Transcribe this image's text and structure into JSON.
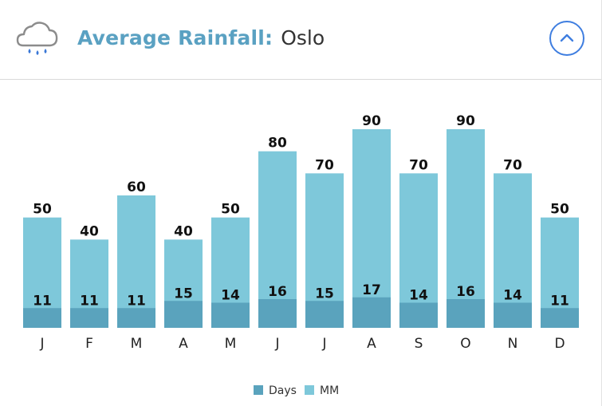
{
  "header": {
    "title_label": "Average Rainfall:",
    "city": "Oslo",
    "weather_icon": "rain-cloud-icon",
    "collapse_icon": "chevron-up-icon"
  },
  "colors": {
    "mm": "#7ec8da",
    "days": "#5aa3bd",
    "title": "#5aa1c2",
    "button": "#3f7ee0"
  },
  "chart_data": {
    "type": "bar",
    "title": "Average Rainfall: Oslo",
    "categories": [
      "J",
      "F",
      "M",
      "A",
      "M",
      "J",
      "J",
      "A",
      "S",
      "O",
      "N",
      "D"
    ],
    "series": [
      {
        "name": "Days",
        "values": [
          11,
          11,
          11,
          15,
          14,
          16,
          15,
          17,
          14,
          16,
          14,
          11
        ]
      },
      {
        "name": "MM",
        "values": [
          50,
          40,
          60,
          40,
          50,
          80,
          70,
          90,
          70,
          90,
          70,
          50
        ]
      }
    ],
    "ylim": [
      0,
      90
    ],
    "xlabel": "",
    "ylabel": "",
    "grid": false,
    "legend": "bottom-center"
  }
}
